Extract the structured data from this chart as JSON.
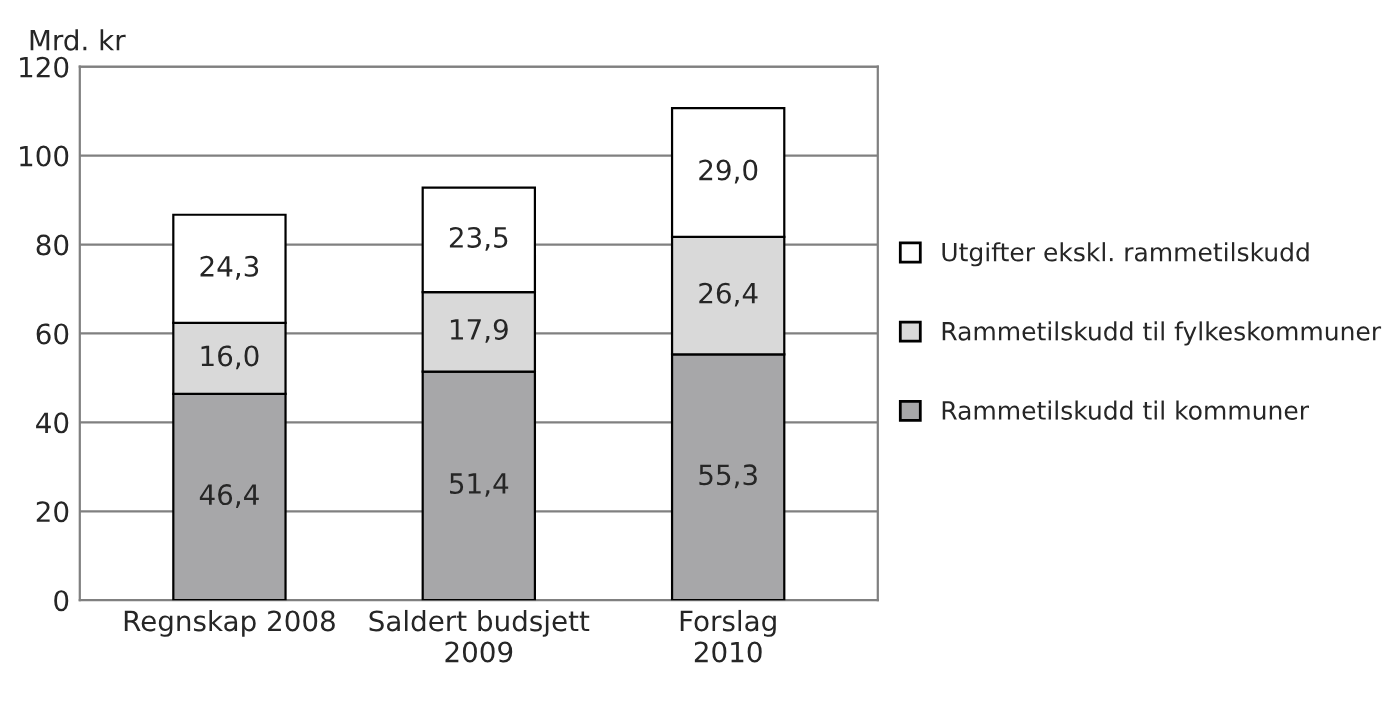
{
  "chart_data": {
    "type": "bar",
    "stacked": true,
    "ylabel": "Mrd. kr",
    "categories": [
      "Regnskap 2008",
      "Saldert budsjett\n2009",
      "Forslag\n2010"
    ],
    "series": [
      {
        "name": "Rammetilskudd til kommuner",
        "color": "#a7a7a9",
        "values": [
          46.4,
          51.4,
          55.3
        ],
        "value_labels": [
          "46,4",
          "51,4",
          "55,3"
        ]
      },
      {
        "name": "Rammetilskudd til fylkeskommuner",
        "color": "#d9d9d9",
        "values": [
          16.0,
          17.9,
          26.4
        ],
        "value_labels": [
          "16,0",
          "17,9",
          "26,4"
        ]
      },
      {
        "name": "Utgifter ekskl. rammetilskudd",
        "color": "#ffffff",
        "values": [
          24.3,
          23.5,
          29.0
        ],
        "value_labels": [
          "24,3",
          "23,5",
          "29,0"
        ]
      }
    ],
    "ylim": [
      0,
      120
    ],
    "yticks": [
      0,
      20,
      40,
      60,
      80,
      100,
      120
    ],
    "grid": "y",
    "legend": "right"
  }
}
